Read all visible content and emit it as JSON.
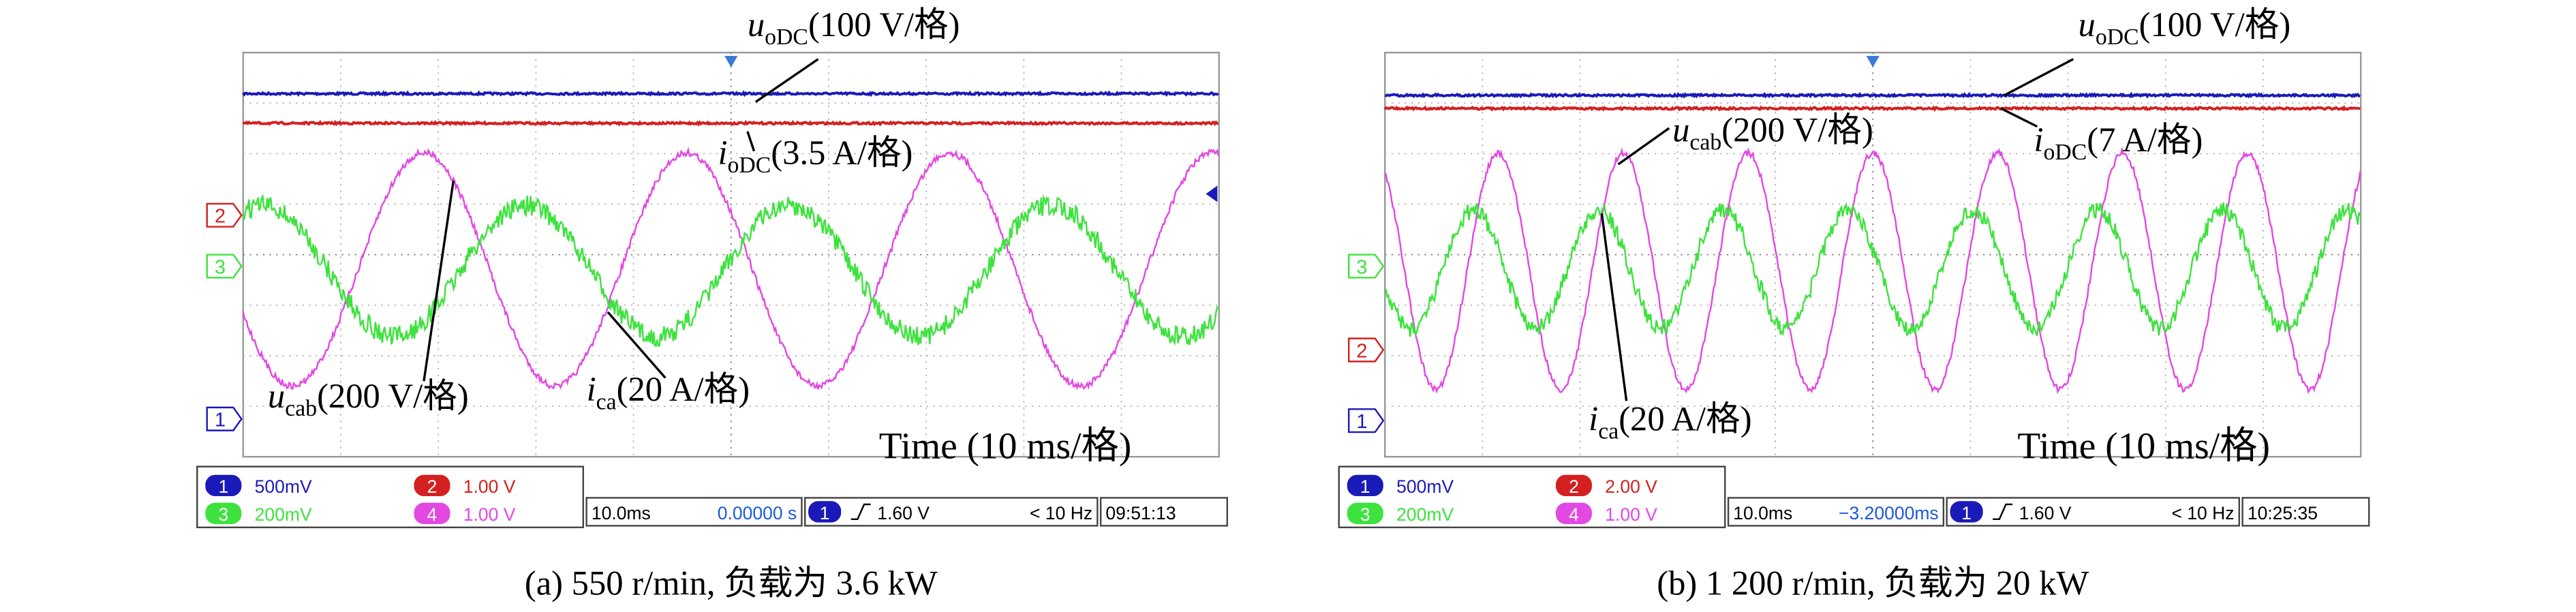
{
  "panels": [
    {
      "caption": "(a) 550 r/min, 负载为 3.6 kW",
      "annotations": [
        {
          "symbol": "u",
          "sub": "oDC",
          "scale": "(100 V/格)"
        },
        {
          "symbol": "i",
          "sub": "oDC",
          "scale": "(3.5 A/格)"
        },
        {
          "symbol": "u",
          "sub": "cab",
          "scale": "(200 V/格)"
        },
        {
          "symbol": "i",
          "sub": "ca",
          "scale": "(20 A/格)"
        }
      ],
      "time_label": "Time (10 ms/格)",
      "channel_markers": [
        "2",
        "3",
        "1"
      ],
      "status": {
        "channels": [
          {
            "id": "1",
            "scale": "500mV"
          },
          {
            "id": "2",
            "scale": "1.00 V"
          },
          {
            "id": "3",
            "scale": "200mV"
          },
          {
            "id": "4",
            "scale": "1.00 V"
          }
        ],
        "timebase": "10.0ms",
        "delay": "0.00000 s",
        "trigger_channel": "1",
        "trigger_level": "1.60 V",
        "frequency": "< 10 Hz",
        "clock": "09:51:13"
      }
    },
    {
      "caption": "(b) 1 200 r/min, 负载为 20 kW",
      "annotations": [
        {
          "symbol": "u",
          "sub": "oDC",
          "scale": "(100 V/格)"
        },
        {
          "symbol": "i",
          "sub": "oDC",
          "scale": "(7 A/格)"
        },
        {
          "symbol": "u",
          "sub": "cab",
          "scale": "(200 V/格)"
        },
        {
          "symbol": "i",
          "sub": "ca",
          "scale": "(20 A/格)"
        }
      ],
      "time_label": "Time (10 ms/格)",
      "channel_markers": [
        "3",
        "2",
        "1"
      ],
      "status": {
        "channels": [
          {
            "id": "1",
            "scale": "500mV"
          },
          {
            "id": "2",
            "scale": "2.00 V"
          },
          {
            "id": "3",
            "scale": "200mV"
          },
          {
            "id": "4",
            "scale": "1.00 V"
          }
        ],
        "timebase": "10.0ms",
        "delay": "−3.20000ms",
        "trigger_channel": "1",
        "trigger_level": "1.60 V",
        "frequency": "< 10 Hz",
        "clock": "10:25:35"
      }
    }
  ]
}
